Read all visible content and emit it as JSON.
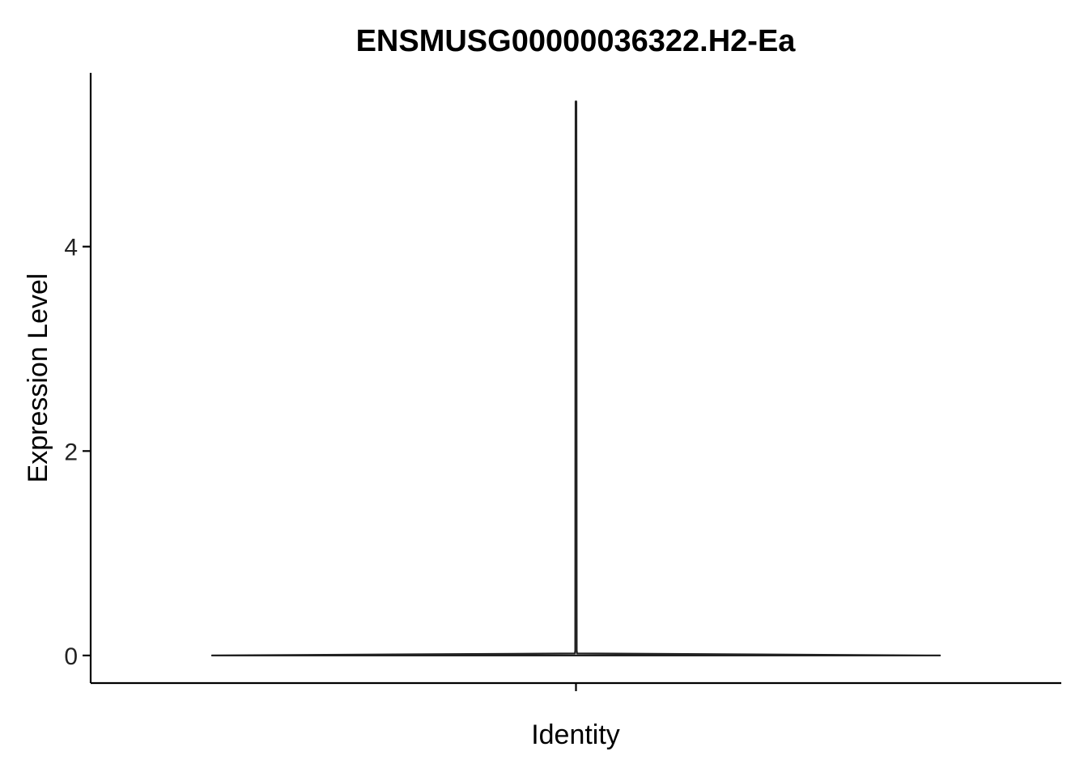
{
  "chart_data": {
    "type": "violin",
    "title": "ENSMUSG00000036322.H2-Ea",
    "xlabel": "Identity",
    "ylabel": "Expression Level",
    "categories": [
      ""
    ],
    "ylim": [
      -0.27,
      5.7
    ],
    "y_ticks": [
      0,
      2,
      4
    ],
    "y_tick_labels": [
      "0",
      "2",
      "4"
    ],
    "series": [
      {
        "category": "",
        "min": 0,
        "max": 5.42,
        "density": [
          {
            "y": 0.0,
            "w": 1.0
          },
          {
            "y": 0.01,
            "w": 0.5
          },
          {
            "y": 0.02,
            "w": 0.003
          },
          {
            "y": 0.05,
            "w": 0.002
          },
          {
            "y": 1.0,
            "w": 0.0018
          },
          {
            "y": 3.0,
            "w": 0.0016
          },
          {
            "y": 5.42,
            "w": 0.001
          }
        ]
      }
    ],
    "grid": false,
    "legend": "none",
    "colors": {
      "line": "#222222",
      "axis": "#000000",
      "fill": "#ffffff"
    }
  }
}
